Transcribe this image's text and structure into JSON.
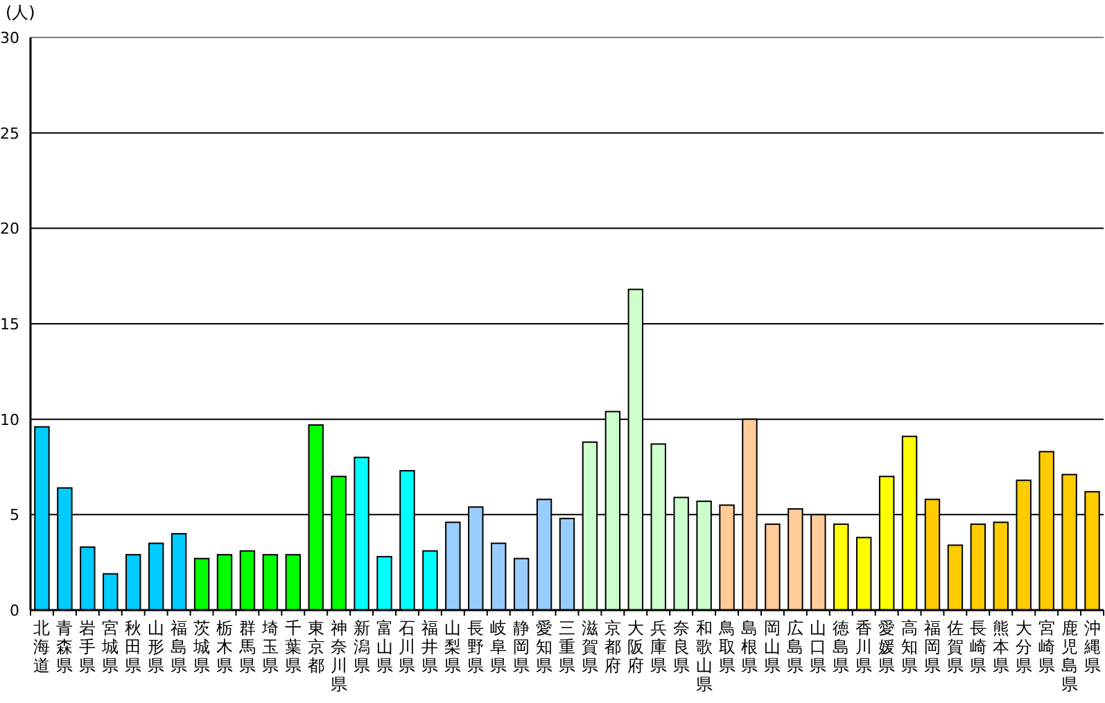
{
  "chart_data": {
    "type": "bar",
    "ylabel": "(人)",
    "categories": [
      "北海道",
      "青森県",
      "岩手県",
      "宮城県",
      "秋田県",
      "山形県",
      "福島県",
      "茨城県",
      "栃木県",
      "群馬県",
      "埼玉県",
      "千葉県",
      "東京都",
      "神奈川県",
      "新潟県",
      "富山県",
      "石川県",
      "福井県",
      "山梨県",
      "長野県",
      "岐阜県",
      "静岡県",
      "愛知県",
      "三重県",
      "滋賀県",
      "京都府",
      "大阪府",
      "兵庫県",
      "奈良県",
      "和歌山県",
      "鳥取県",
      "島根県",
      "岡山県",
      "広島県",
      "山口県",
      "徳島県",
      "香川県",
      "愛媛県",
      "高知県",
      "福岡県",
      "佐賀県",
      "長崎県",
      "熊本県",
      "大分県",
      "宮崎県",
      "鹿児島県",
      "沖縄県"
    ],
    "values": [
      9.6,
      6.4,
      3.3,
      1.9,
      2.9,
      3.5,
      4.0,
      2.7,
      2.9,
      3.1,
      2.9,
      2.9,
      9.7,
      7.0,
      8.0,
      2.8,
      7.3,
      3.1,
      4.6,
      5.4,
      3.5,
      2.7,
      5.8,
      4.8,
      8.8,
      10.4,
      16.8,
      8.7,
      5.9,
      5.7,
      5.5,
      10.0,
      4.5,
      5.3,
      5.0,
      4.5,
      3.8,
      7.0,
      9.1,
      5.8,
      3.4,
      4.5,
      4.6,
      6.8,
      8.3,
      7.1,
      6.2
    ],
    "colors": [
      "#00ccff",
      "#00ccff",
      "#00ccff",
      "#00ccff",
      "#00ccff",
      "#00ccff",
      "#00ccff",
      "#00ff00",
      "#00ff00",
      "#00ff00",
      "#00ff00",
      "#00ff00",
      "#00ff00",
      "#00ff00",
      "#00ffff",
      "#00ffff",
      "#00ffff",
      "#00ffff",
      "#99ccff",
      "#99ccff",
      "#99ccff",
      "#99ccff",
      "#99ccff",
      "#99ccff",
      "#ccffcc",
      "#ccffcc",
      "#ccffcc",
      "#ccffcc",
      "#ccffcc",
      "#ccffcc",
      "#ffcc99",
      "#ffcc99",
      "#ffcc99",
      "#ffcc99",
      "#ffcc99",
      "#ffff00",
      "#ffff00",
      "#ffff00",
      "#ffff00",
      "#ffcc00",
      "#ffcc00",
      "#ffcc00",
      "#ffcc00",
      "#ffcc00",
      "#ffcc00",
      "#ffcc00",
      "#ffcc00"
    ],
    "ylim": [
      0,
      30
    ],
    "yticks": [
      0,
      5,
      10,
      15,
      20,
      25,
      30
    ],
    "grid": "y"
  }
}
